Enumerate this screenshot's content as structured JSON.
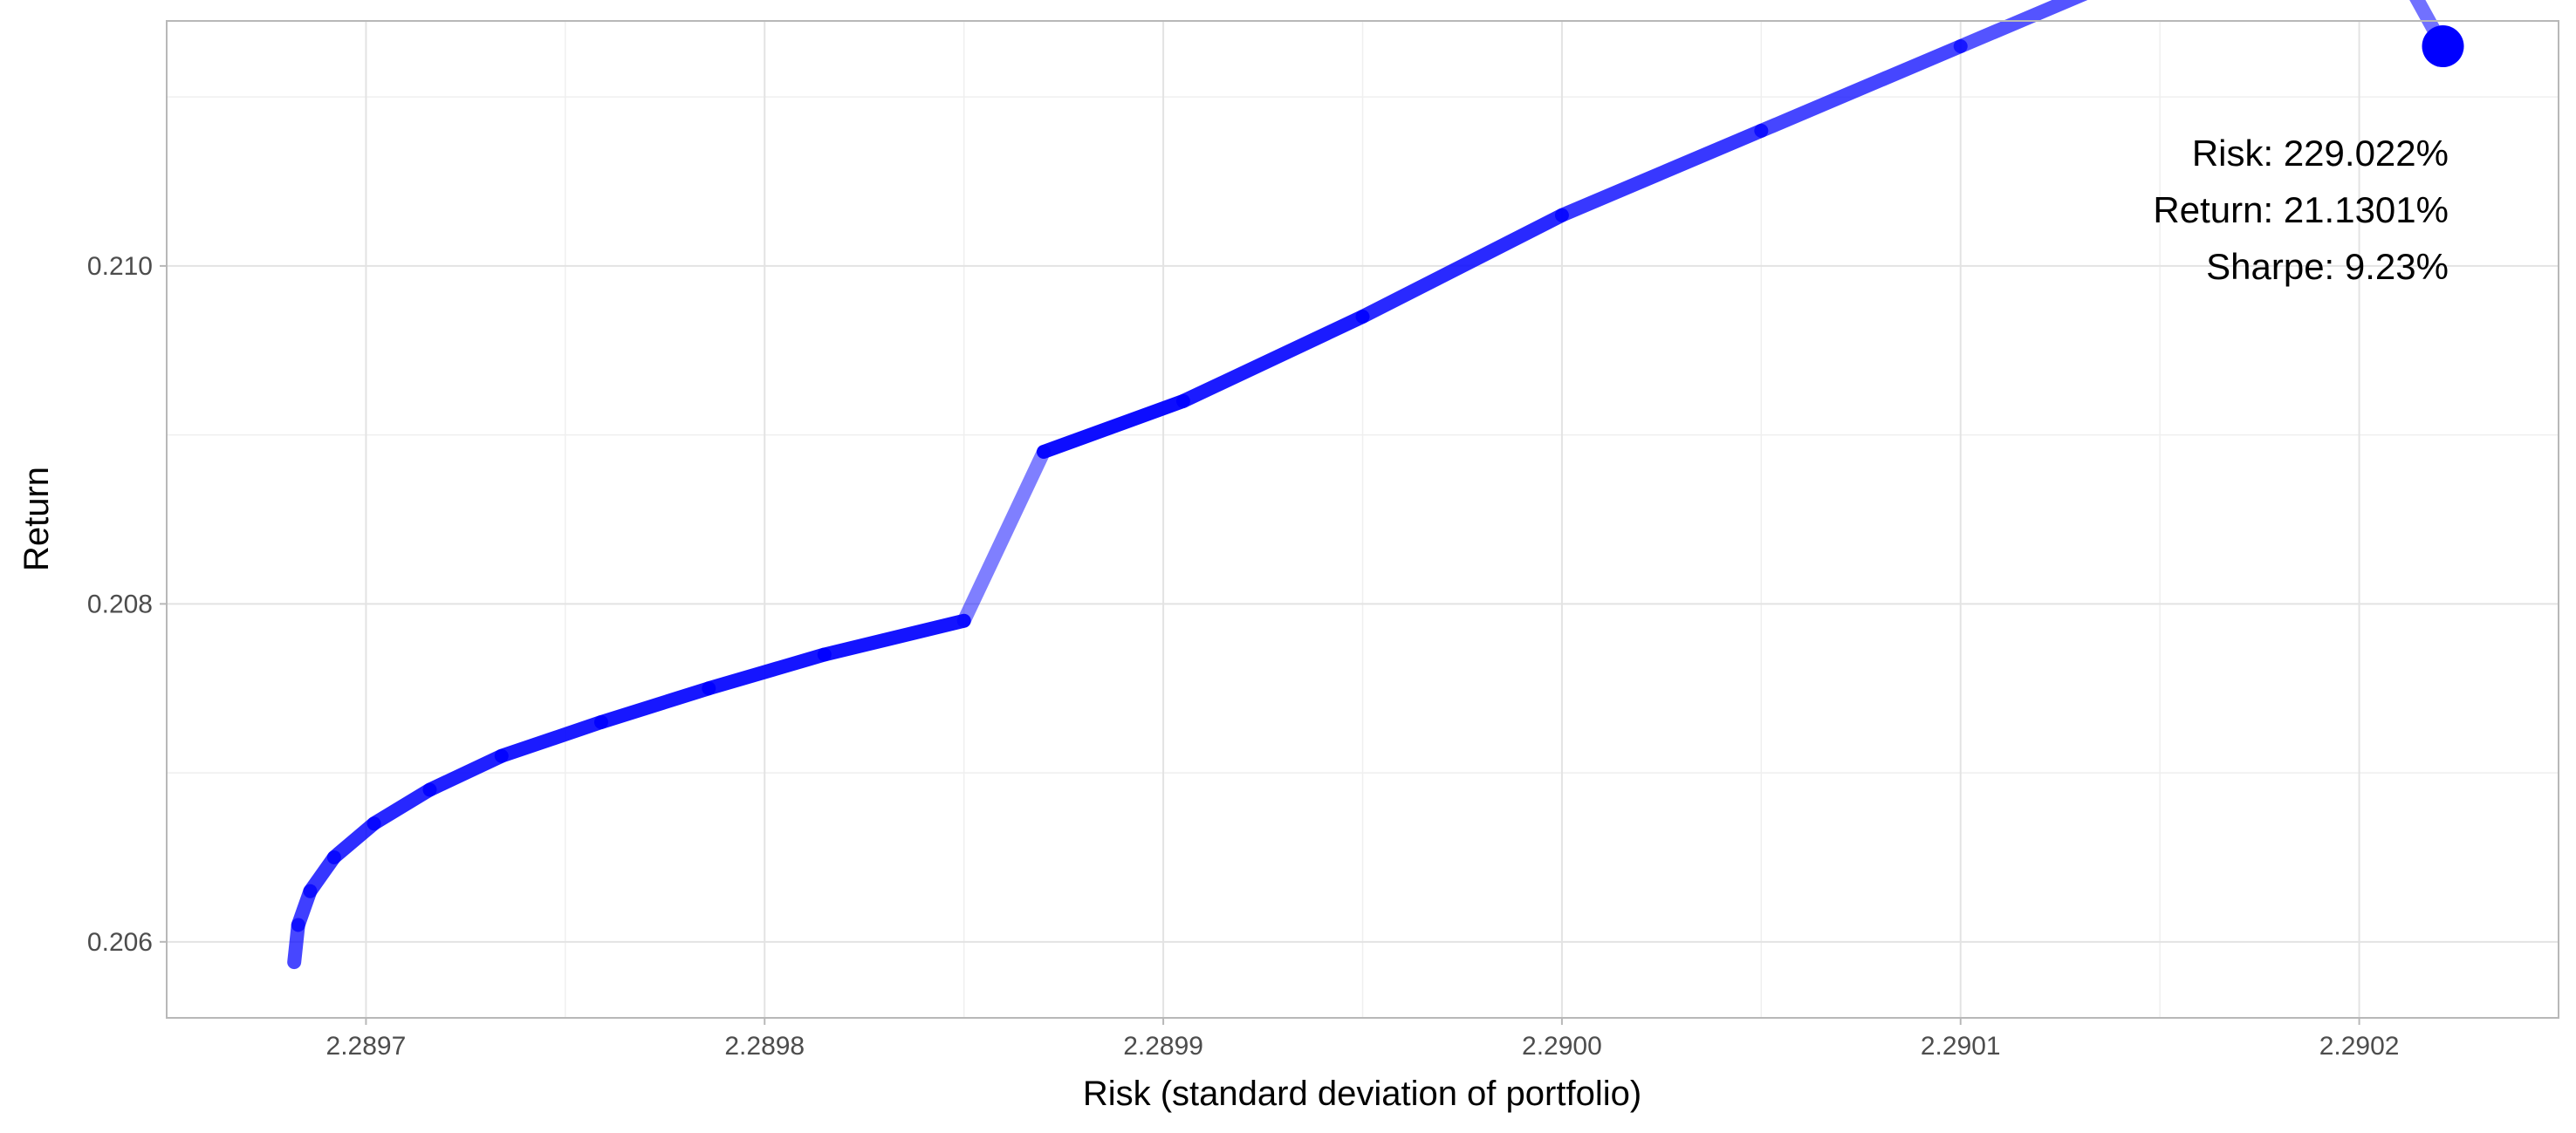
{
  "chart_data": {
    "type": "line",
    "title": "",
    "xlabel": "Risk (standard deviation of portfolio)",
    "ylabel": "Return",
    "xlim": [
      2.28965,
      2.29025
    ],
    "ylim": [
      0.20555,
      0.21145
    ],
    "x_ticks": [
      2.2897,
      2.2898,
      2.2899,
      2.29,
      2.2901,
      2.2902
    ],
    "x_tick_labels": [
      "2.2897",
      "2.2898",
      "2.2899",
      "2.2900",
      "2.2901",
      "2.2902"
    ],
    "y_ticks": [
      0.206,
      0.208,
      0.21
    ],
    "y_tick_labels": [
      "0.206",
      "0.208",
      "0.210"
    ],
    "grid": true,
    "line_color": "#0000ff",
    "series": [
      {
        "x": [
          2.289682,
          2.289683,
          2.289686,
          2.289692,
          2.289702,
          2.289716,
          2.289734,
          2.289759,
          2.289786,
          2.289815,
          2.28985,
          2.28987,
          2.289905,
          2.28995,
          2.29,
          2.29005,
          2.2901,
          2.29015,
          2.2902,
          2.290221
        ],
        "y": [
          0.20588,
          0.2061,
          0.2063,
          0.2065,
          0.2067,
          0.2069,
          0.2071,
          0.2073,
          0.2075,
          0.2077,
          0.2079,
          0.2089,
          0.2092,
          0.2097,
          0.2103,
          0.2108,
          0.2113,
          0.2118,
          0.2122,
          0.2113
        ]
      }
    ],
    "highlight_point": {
      "x": 2.290221,
      "y": 0.2113,
      "color": "#0000ff"
    },
    "annotations": [
      "Risk: 229.022%",
      "Return: 21.1301%",
      "Sharpe: 9.23%"
    ]
  }
}
